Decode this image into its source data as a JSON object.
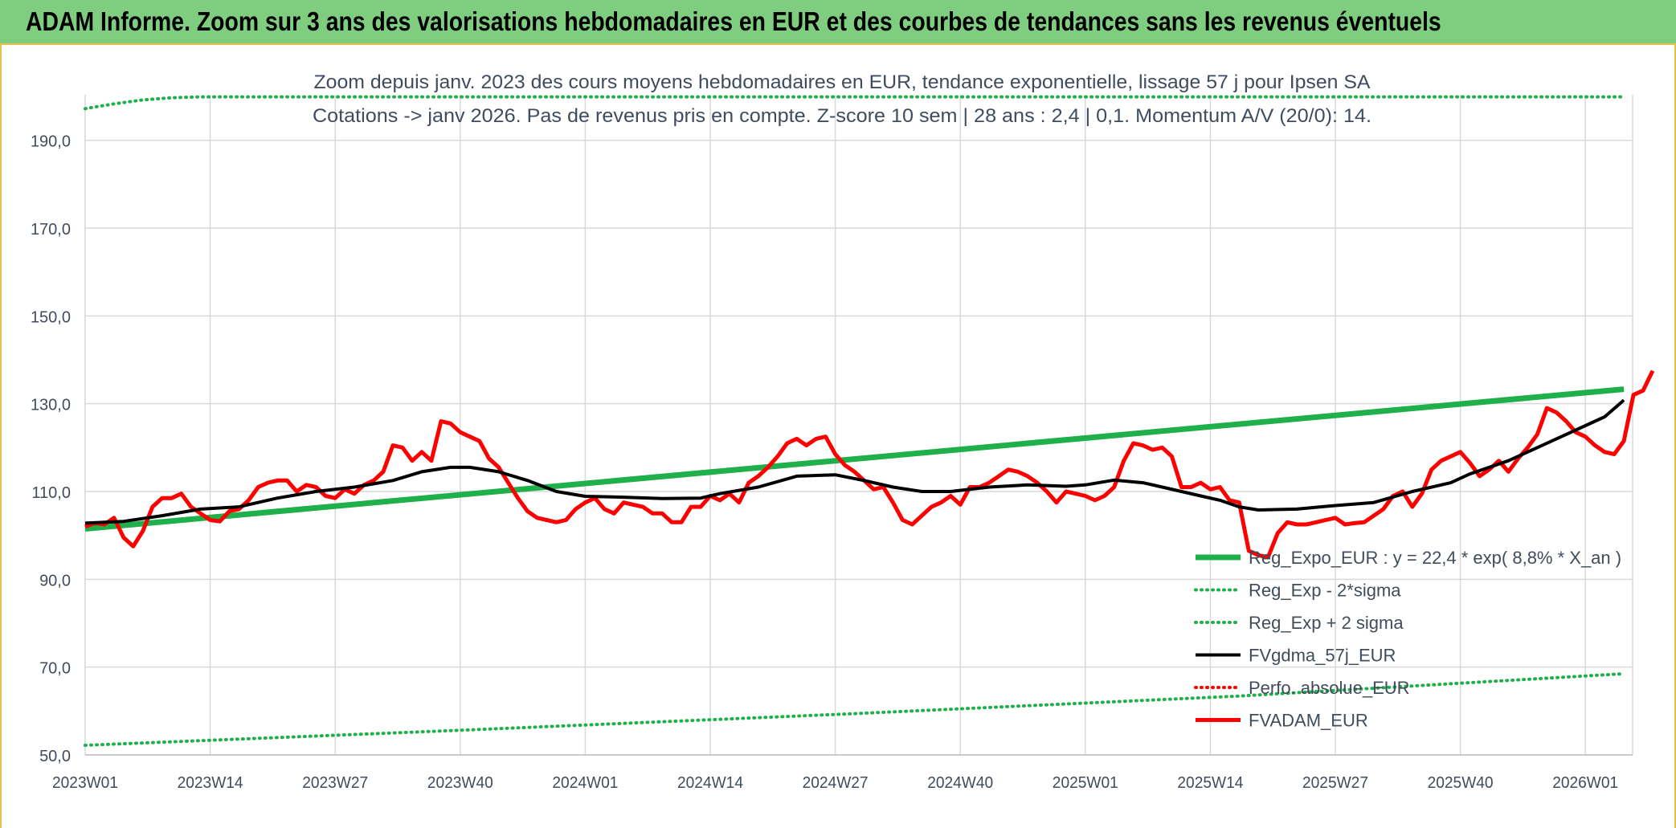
{
  "banner": {
    "title": "ADAM Informe. Zoom sur 3 ans des valorisations hebdomadaires en EUR et des courbes de tendances sans les revenus éventuels"
  },
  "chart_data": {
    "type": "line",
    "title": "Zoom depuis janv. 2023 des cours moyens hebdomadaires en EUR, tendance exponentielle, lissage 57 j pour Ipsen SA",
    "subtitle": "Cotations -> janv 2026. Pas de revenus pris en compte. Z-score 10 sem | 28 ans : 2,4 | 0,1. Momentum A/V (20/0): 14.",
    "xlabel": "",
    "ylabel": "",
    "x_tick_labels": [
      "2023W01",
      "2023W14",
      "2023W27",
      "2023W40",
      "2024W01",
      "2024W14",
      "2024W27",
      "2024W40",
      "2025W01",
      "2025W14",
      "2025W27",
      "2025W40",
      "2026W01"
    ],
    "x_tick_weeks": [
      0,
      13,
      26,
      39,
      52,
      65,
      78,
      91,
      104,
      117,
      130,
      143,
      156
    ],
    "y_tick_labels": [
      "50,0",
      "70,0",
      "90,0",
      "110,0",
      "130,0",
      "150,0",
      "170,0",
      "190,0"
    ],
    "y_ticks": [
      50,
      70,
      90,
      110,
      130,
      150,
      170,
      190
    ],
    "ylim": [
      50,
      196
    ],
    "x_range_weeks": [
      0,
      160
    ],
    "grid": true,
    "legend_position": "bottom-right",
    "series": [
      {
        "name": "Reg_Expo_EUR : y = 22,4 * exp( 8,8% *  X_an )",
        "color": "#1fb04c",
        "style": "solid-thick",
        "points": [
          [
            0,
            101.5
          ],
          [
            160,
            133.3
          ]
        ]
      },
      {
        "name": "Reg_Exp - 2*sigma",
        "color": "#1fb04c",
        "style": "dotted",
        "points": [
          [
            0,
            52.2
          ],
          [
            40,
            55.7
          ],
          [
            80,
            59.4
          ],
          [
            120,
            63.4
          ],
          [
            160,
            68.5
          ]
        ]
      },
      {
        "name": "Reg_Exp + 2 sigma",
        "color": "#1fb04c",
        "style": "dotted",
        "points": [
          [
            0,
            197.2
          ],
          [
            3,
            198.3
          ],
          [
            6,
            199.2
          ],
          [
            9,
            199.7
          ],
          [
            12,
            199.9
          ],
          [
            15,
            199.9
          ],
          [
            20,
            199.9
          ],
          [
            25,
            199.9
          ],
          [
            160,
            199.9
          ]
        ]
      },
      {
        "name": "FVgdma_57j_EUR",
        "color": "#000000",
        "style": "solid",
        "points": [
          [
            0,
            102.8
          ],
          [
            4,
            103.2
          ],
          [
            8,
            104.5
          ],
          [
            12,
            106.0
          ],
          [
            16,
            106.5
          ],
          [
            20,
            108.5
          ],
          [
            24,
            110.0
          ],
          [
            28,
            111.0
          ],
          [
            32,
            112.5
          ],
          [
            35,
            114.5
          ],
          [
            38,
            115.5
          ],
          [
            40,
            115.5
          ],
          [
            43,
            114.5
          ],
          [
            46,
            112.5
          ],
          [
            49,
            110.0
          ],
          [
            52,
            108.9
          ],
          [
            56,
            108.7
          ],
          [
            60,
            108.4
          ],
          [
            64,
            108.5
          ],
          [
            66,
            109.5
          ],
          [
            70,
            111.0
          ],
          [
            74,
            113.5
          ],
          [
            78,
            113.8
          ],
          [
            81,
            112.5
          ],
          [
            84,
            111.0
          ],
          [
            87,
            110.0
          ],
          [
            90,
            110.0
          ],
          [
            94,
            111.0
          ],
          [
            98,
            111.5
          ],
          [
            102,
            111.2
          ],
          [
            104,
            111.5
          ],
          [
            107,
            112.6
          ],
          [
            110,
            112.0
          ],
          [
            112,
            111.0
          ],
          [
            116,
            109.0
          ],
          [
            118,
            108.0
          ],
          [
            120,
            106.5
          ],
          [
            122,
            105.8
          ],
          [
            126,
            106.0
          ],
          [
            130,
            106.8
          ],
          [
            134,
            107.5
          ],
          [
            138,
            110.0
          ],
          [
            142,
            112.0
          ],
          [
            144,
            114.0
          ],
          [
            148,
            117.0
          ],
          [
            151,
            120.0
          ],
          [
            154,
            123.0
          ],
          [
            157,
            126.0
          ],
          [
            158,
            127.0
          ],
          [
            160,
            130.8
          ]
        ]
      },
      {
        "name": "Perfo. absolue_EUR",
        "color": "#ff0000",
        "style": "dotted",
        "points": []
      },
      {
        "name": "FVADAM_EUR",
        "color": "#ff0000",
        "style": "solid-thick",
        "points": [
          [
            0,
            102.0
          ],
          [
            1,
            102.8
          ],
          [
            2,
            102.5
          ],
          [
            3,
            104.0
          ],
          [
            4,
            99.5
          ],
          [
            5,
            97.5
          ],
          [
            6,
            101.0
          ],
          [
            7,
            106.5
          ],
          [
            8,
            108.5
          ],
          [
            9,
            108.5
          ],
          [
            10,
            109.5
          ],
          [
            11,
            106.5
          ],
          [
            12,
            105.0
          ],
          [
            13,
            103.5
          ],
          [
            14,
            103.2
          ],
          [
            15,
            105.5
          ],
          [
            16,
            106.0
          ],
          [
            17,
            108.0
          ],
          [
            18,
            111.0
          ],
          [
            19,
            112.0
          ],
          [
            20,
            112.5
          ],
          [
            21,
            112.5
          ],
          [
            22,
            110.0
          ],
          [
            23,
            111.5
          ],
          [
            24,
            111.0
          ],
          [
            25,
            109.0
          ],
          [
            26,
            108.5
          ],
          [
            27,
            110.5
          ],
          [
            28,
            109.5
          ],
          [
            29,
            111.5
          ],
          [
            30,
            112.5
          ],
          [
            31,
            114.5
          ],
          [
            32,
            120.5
          ],
          [
            33,
            120.0
          ],
          [
            34,
            117.0
          ],
          [
            35,
            119.0
          ],
          [
            36,
            117.0
          ],
          [
            37,
            126.0
          ],
          [
            38,
            125.5
          ],
          [
            39,
            123.5
          ],
          [
            40,
            122.5
          ],
          [
            41,
            121.5
          ],
          [
            42,
            117.5
          ],
          [
            43,
            115.5
          ],
          [
            44,
            112.0
          ],
          [
            45,
            108.5
          ],
          [
            46,
            105.5
          ],
          [
            47,
            104.0
          ],
          [
            48,
            103.5
          ],
          [
            49,
            103.0
          ],
          [
            50,
            103.5
          ],
          [
            51,
            106.0
          ],
          [
            52,
            107.5
          ],
          [
            53,
            108.5
          ],
          [
            54,
            106.0
          ],
          [
            55,
            105.0
          ],
          [
            56,
            107.5
          ],
          [
            57,
            107.0
          ],
          [
            58,
            106.5
          ],
          [
            59,
            105.0
          ],
          [
            60,
            105.0
          ],
          [
            61,
            103.0
          ],
          [
            62,
            103.0
          ],
          [
            63,
            106.5
          ],
          [
            64,
            106.5
          ],
          [
            65,
            109.0
          ],
          [
            66,
            108.0
          ],
          [
            67,
            109.5
          ],
          [
            68,
            107.5
          ],
          [
            69,
            112.0
          ],
          [
            70,
            113.5
          ],
          [
            71,
            115.5
          ],
          [
            72,
            118.0
          ],
          [
            73,
            121.0
          ],
          [
            74,
            122.0
          ],
          [
            75,
            120.5
          ],
          [
            76,
            122.0
          ],
          [
            77,
            122.5
          ],
          [
            78,
            118.5
          ],
          [
            79,
            116.0
          ],
          [
            80,
            114.5
          ],
          [
            81,
            112.5
          ],
          [
            82,
            110.5
          ],
          [
            83,
            111.0
          ],
          [
            84,
            107.5
          ],
          [
            85,
            103.5
          ],
          [
            86,
            102.5
          ],
          [
            87,
            104.5
          ],
          [
            88,
            106.5
          ],
          [
            89,
            107.5
          ],
          [
            90,
            109.0
          ],
          [
            91,
            107.0
          ],
          [
            92,
            111.0
          ],
          [
            93,
            111.0
          ],
          [
            94,
            112.0
          ],
          [
            95,
            113.5
          ],
          [
            96,
            115.0
          ],
          [
            97,
            114.5
          ],
          [
            98,
            113.5
          ],
          [
            99,
            112.0
          ],
          [
            100,
            110.0
          ],
          [
            101,
            107.5
          ],
          [
            102,
            110.0
          ],
          [
            103,
            109.5
          ],
          [
            104,
            109.0
          ],
          [
            105,
            108.0
          ],
          [
            106,
            109.0
          ],
          [
            107,
            111.0
          ],
          [
            108,
            117.0
          ],
          [
            109,
            121.0
          ],
          [
            110,
            120.5
          ],
          [
            111,
            119.5
          ],
          [
            112,
            120.0
          ],
          [
            113,
            118.0
          ],
          [
            114,
            111.0
          ],
          [
            115,
            111.0
          ],
          [
            116,
            112.0
          ],
          [
            117,
            110.5
          ],
          [
            118,
            111.0
          ],
          [
            119,
            108.0
          ],
          [
            120,
            107.5
          ],
          [
            121,
            96.5
          ],
          [
            122,
            95.5
          ],
          [
            123,
            95.0
          ],
          [
            124,
            100.5
          ],
          [
            125,
            103.0
          ],
          [
            126,
            102.5
          ],
          [
            127,
            102.5
          ],
          [
            128,
            103.0
          ],
          [
            129,
            103.5
          ],
          [
            130,
            104.0
          ],
          [
            131,
            102.5
          ],
          [
            132,
            102.8
          ],
          [
            133,
            103.0
          ],
          [
            134,
            104.5
          ],
          [
            135,
            106.0
          ],
          [
            136,
            109.0
          ],
          [
            137,
            110.0
          ],
          [
            138,
            106.5
          ],
          [
            139,
            109.5
          ],
          [
            140,
            115.0
          ],
          [
            141,
            117.0
          ],
          [
            142,
            118.0
          ],
          [
            143,
            119.0
          ],
          [
            144,
            116.5
          ],
          [
            145,
            113.5
          ],
          [
            146,
            115.0
          ],
          [
            147,
            117.0
          ],
          [
            148,
            114.5
          ],
          [
            149,
            117.5
          ],
          [
            150,
            120.0
          ],
          [
            151,
            123.0
          ],
          [
            152,
            129.0
          ],
          [
            153,
            128.0
          ],
          [
            154,
            126.0
          ],
          [
            155,
            123.5
          ],
          [
            156,
            122.5
          ],
          [
            157,
            120.5
          ],
          [
            158,
            119.0
          ],
          [
            159,
            118.5
          ],
          [
            160,
            121.5
          ],
          [
            161,
            132.0
          ],
          [
            162,
            133.0
          ],
          [
            163,
            137.5
          ]
        ]
      }
    ]
  }
}
